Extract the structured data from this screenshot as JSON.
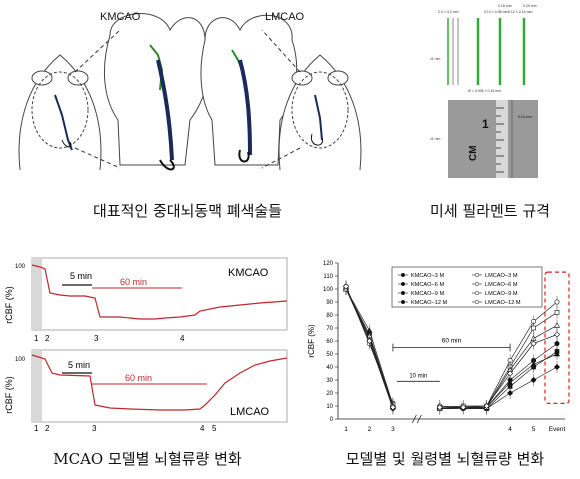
{
  "top_left": {
    "label_left": "KMCAO",
    "label_right": "LMCAO",
    "caption": "대표적인 중대뇌동맥 폐색술들"
  },
  "top_right": {
    "dims": [
      "2.0 × 3.0 mm",
      "0.10 × 0.08 mm",
      "0.12 × 0.14 mm",
      "0.18 mm",
      "0.20 mm"
    ],
    "side_label": "11 mm",
    "bottom_dims": "Ø = 0.005 × 0.15 mm",
    "ruler_unit": "CM",
    "ruler_number": "1",
    "ruler_annotation": "0.15 mm",
    "ruler_side": "11 mm",
    "caption": "미세 필라멘트 규격"
  },
  "bottom_left": {
    "ylabel": "rCBF (%)",
    "top": {
      "label": "KMCAO",
      "ytick": "100",
      "span1": "5 min",
      "span2": "60 min",
      "events": [
        "1",
        "2",
        "3",
        "4"
      ]
    },
    "bottom": {
      "label": "LMCAO",
      "ytick": "100",
      "span1": "5 min",
      "span2": "60 min",
      "events": [
        "1",
        "2",
        "3",
        "4",
        "5"
      ]
    },
    "caption": "MCAO 모델별 뇌혈류량 변화"
  },
  "bottom_right": {
    "caption": "모델별 및 월령별 뇌혈류량 변화",
    "chart_data": {
      "type": "line",
      "ylabel": "rCBF (%)",
      "ylim": [
        0,
        120
      ],
      "yticks": [
        "0",
        "10",
        "20",
        "30",
        "40",
        "50",
        "60",
        "70",
        "80",
        "90",
        "100",
        "110",
        "120"
      ],
      "categories": [
        "1",
        "2",
        "3",
        "",
        "",
        "",
        "",
        "4",
        "5",
        "Event"
      ],
      "xtick_labels": [
        "1",
        "2",
        "3",
        "4",
        "5",
        "Event"
      ],
      "span_60": "60 min",
      "span_10": "10 min",
      "legend": "top-center",
      "series": [
        {
          "name": "KMCAO−3 M",
          "marker": "filled-circle",
          "values": [
            100,
            65,
            10,
            null,
            8,
            8,
            9,
            30,
            45,
            58
          ]
        },
        {
          "name": "KMCAO−6 M",
          "marker": "filled-square",
          "values": [
            100,
            62,
            9,
            null,
            8,
            9,
            8,
            25,
            40,
            52
          ]
        },
        {
          "name": "KMCAO−9 M",
          "marker": "filled-triangle",
          "values": [
            100,
            68,
            11,
            null,
            9,
            9,
            9,
            28,
            42,
            50
          ]
        },
        {
          "name": "KMCAO−12 M",
          "marker": "filled-diamond",
          "values": [
            100,
            60,
            8,
            null,
            8,
            8,
            8,
            20,
            30,
            40
          ]
        },
        {
          "name": "LMCAO−3 M",
          "marker": "open-circle",
          "values": [
            102,
            58,
            12,
            null,
            10,
            9,
            10,
            45,
            75,
            90
          ]
        },
        {
          "name": "LMCAO−6 M",
          "marker": "open-square",
          "values": [
            101,
            62,
            11,
            null,
            9,
            10,
            10,
            40,
            70,
            82
          ]
        },
        {
          "name": "LMCAO−9 M",
          "marker": "open-triangle",
          "values": [
            100,
            64,
            10,
            null,
            8,
            9,
            9,
            38,
            62,
            72
          ]
        },
        {
          "name": "LMCAO−12 M",
          "marker": "open-diamond",
          "values": [
            102,
            60,
            9,
            null,
            9,
            9,
            10,
            35,
            58,
            65
          ]
        }
      ]
    }
  }
}
